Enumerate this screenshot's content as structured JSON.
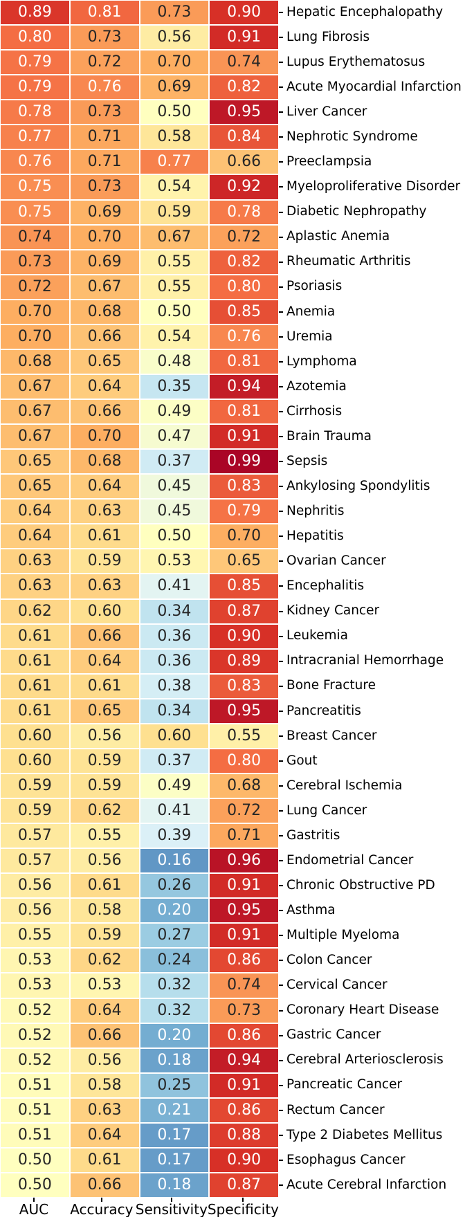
{
  "chart_data": {
    "type": "heatmap",
    "title": "",
    "columns": [
      "AUC",
      "Accuracy",
      "Sensitivity",
      "Specificity"
    ],
    "rows": [
      {
        "label": "Hepatic Encephalopathy",
        "values": [
          0.89,
          0.81,
          0.73,
          0.9
        ]
      },
      {
        "label": "Lung Fibrosis",
        "values": [
          0.8,
          0.73,
          0.56,
          0.91
        ]
      },
      {
        "label": "Lupus Erythematosus",
        "values": [
          0.79,
          0.72,
          0.7,
          0.74
        ]
      },
      {
        "label": "Acute Myocardial Infarction",
        "values": [
          0.79,
          0.76,
          0.69,
          0.82
        ]
      },
      {
        "label": "Liver Cancer",
        "values": [
          0.78,
          0.73,
          0.5,
          0.95
        ]
      },
      {
        "label": "Nephrotic Syndrome",
        "values": [
          0.77,
          0.71,
          0.58,
          0.84
        ]
      },
      {
        "label": "Preeclampsia",
        "values": [
          0.76,
          0.71,
          0.77,
          0.66
        ]
      },
      {
        "label": "Myeloproliferative Disorder",
        "values": [
          0.75,
          0.73,
          0.54,
          0.92
        ]
      },
      {
        "label": "Diabetic Nephropathy",
        "values": [
          0.75,
          0.69,
          0.59,
          0.78
        ]
      },
      {
        "label": "Aplastic Anemia",
        "values": [
          0.74,
          0.7,
          0.67,
          0.72
        ]
      },
      {
        "label": "Rheumatic Arthritis",
        "values": [
          0.73,
          0.69,
          0.55,
          0.82
        ]
      },
      {
        "label": "Psoriasis",
        "values": [
          0.72,
          0.67,
          0.55,
          0.8
        ]
      },
      {
        "label": "Anemia",
        "values": [
          0.7,
          0.68,
          0.5,
          0.85
        ]
      },
      {
        "label": "Uremia",
        "values": [
          0.7,
          0.66,
          0.54,
          0.76
        ]
      },
      {
        "label": "Lymphoma",
        "values": [
          0.68,
          0.65,
          0.48,
          0.81
        ]
      },
      {
        "label": "Azotemia",
        "values": [
          0.67,
          0.64,
          0.35,
          0.94
        ]
      },
      {
        "label": "Cirrhosis",
        "values": [
          0.67,
          0.66,
          0.49,
          0.81
        ]
      },
      {
        "label": "Brain Trauma",
        "values": [
          0.67,
          0.7,
          0.47,
          0.91
        ]
      },
      {
        "label": "Sepsis",
        "values": [
          0.65,
          0.68,
          0.37,
          0.99
        ]
      },
      {
        "label": "Ankylosing Spondylitis",
        "values": [
          0.65,
          0.64,
          0.45,
          0.83
        ]
      },
      {
        "label": "Nephritis",
        "values": [
          0.64,
          0.63,
          0.45,
          0.79
        ]
      },
      {
        "label": "Hepatitis",
        "values": [
          0.64,
          0.61,
          0.5,
          0.7
        ]
      },
      {
        "label": "Ovarian Cancer",
        "values": [
          0.63,
          0.59,
          0.53,
          0.65
        ]
      },
      {
        "label": "Encephalitis",
        "values": [
          0.63,
          0.63,
          0.41,
          0.85
        ]
      },
      {
        "label": "Kidney Cancer",
        "values": [
          0.62,
          0.6,
          0.34,
          0.87
        ]
      },
      {
        "label": "Leukemia",
        "values": [
          0.61,
          0.66,
          0.36,
          0.9
        ]
      },
      {
        "label": "Intracranial Hemorrhage",
        "values": [
          0.61,
          0.64,
          0.36,
          0.89
        ]
      },
      {
        "label": "Bone Fracture",
        "values": [
          0.61,
          0.61,
          0.38,
          0.83
        ]
      },
      {
        "label": "Pancreatitis",
        "values": [
          0.61,
          0.65,
          0.34,
          0.95
        ]
      },
      {
        "label": "Breast Cancer",
        "values": [
          0.6,
          0.56,
          0.6,
          0.55
        ]
      },
      {
        "label": "Gout",
        "values": [
          0.6,
          0.59,
          0.37,
          0.8
        ]
      },
      {
        "label": "Cerebral Ischemia",
        "values": [
          0.59,
          0.59,
          0.49,
          0.68
        ]
      },
      {
        "label": "Lung Cancer",
        "values": [
          0.59,
          0.62,
          0.41,
          0.72
        ]
      },
      {
        "label": "Gastritis",
        "values": [
          0.57,
          0.55,
          0.39,
          0.71
        ]
      },
      {
        "label": "Endometrial Cancer",
        "values": [
          0.57,
          0.56,
          0.16,
          0.96
        ]
      },
      {
        "label": "Chronic Obstructive PD",
        "values": [
          0.56,
          0.61,
          0.26,
          0.91
        ]
      },
      {
        "label": "Asthma",
        "values": [
          0.56,
          0.58,
          0.2,
          0.95
        ]
      },
      {
        "label": "Multiple Myeloma",
        "values": [
          0.55,
          0.59,
          0.27,
          0.91
        ]
      },
      {
        "label": "Colon Cancer",
        "values": [
          0.53,
          0.62,
          0.24,
          0.86
        ]
      },
      {
        "label": "Cervical Cancer",
        "values": [
          0.53,
          0.53,
          0.32,
          0.74
        ]
      },
      {
        "label": "Coronary Heart Disease",
        "values": [
          0.52,
          0.64,
          0.32,
          0.73
        ]
      },
      {
        "label": "Gastric Cancer",
        "values": [
          0.52,
          0.66,
          0.2,
          0.86
        ]
      },
      {
        "label": "Cerebral Arteriosclerosis",
        "values": [
          0.52,
          0.56,
          0.18,
          0.94
        ]
      },
      {
        "label": "Pancreatic Cancer",
        "values": [
          0.51,
          0.58,
          0.25,
          0.91
        ]
      },
      {
        "label": "Rectum Cancer",
        "values": [
          0.51,
          0.63,
          0.21,
          0.86
        ]
      },
      {
        "label": "Type 2 Diabetes Mellitus",
        "values": [
          0.51,
          0.64,
          0.17,
          0.88
        ]
      },
      {
        "label": "Esophagus Cancer",
        "values": [
          0.5,
          0.61,
          0.17,
          0.9
        ]
      },
      {
        "label": "Acute Cerebral Infarction",
        "values": [
          0.5,
          0.66,
          0.18,
          0.87
        ]
      }
    ],
    "vmin": 0,
    "vmax": 1,
    "colormap": "RdYlBu_r",
    "colormap_anchors": [
      "#313695",
      "#4575b4",
      "#74add1",
      "#abd9e9",
      "#e0f3f8",
      "#ffffbf",
      "#fee090",
      "#fdae61",
      "#f46d43",
      "#d73027",
      "#a50026"
    ],
    "annot_decimals": 2,
    "annot_colors": {
      "dark": "#262626",
      "light": "#ffffff"
    },
    "cell_border_color": "#ffffff",
    "tick_color": "#000000",
    "label_side": "right",
    "legend": "none",
    "grid": "off"
  }
}
